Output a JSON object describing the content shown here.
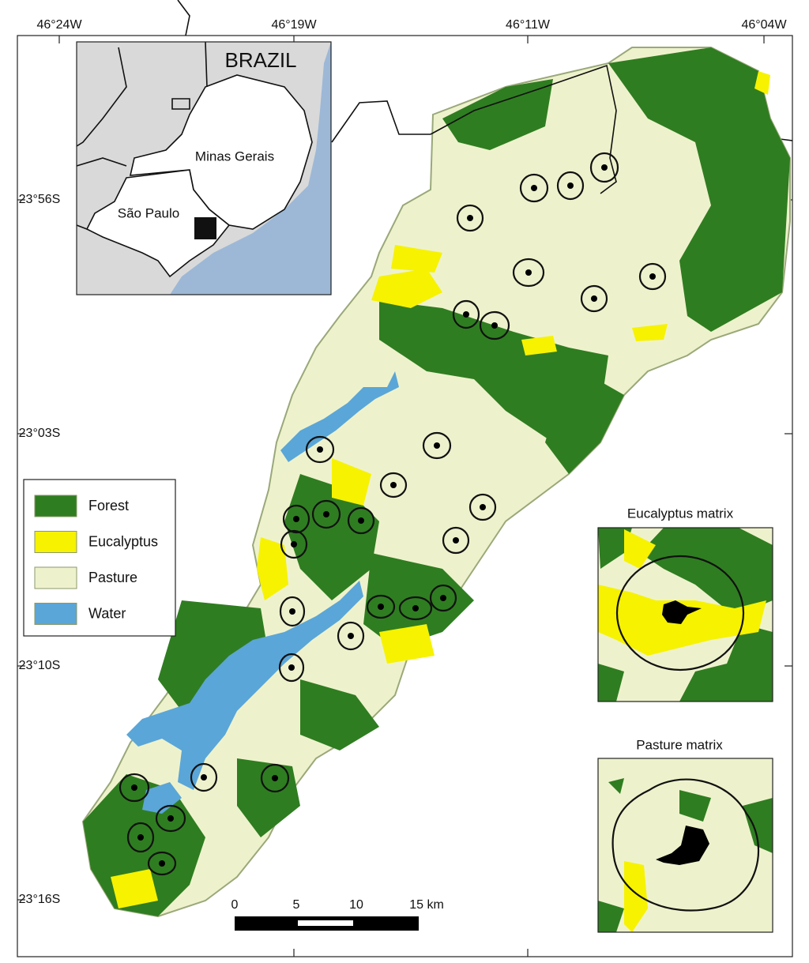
{
  "axes": {
    "top_labels": [
      "46°24W",
      "46°19W",
      "46°11W",
      "46°04W"
    ],
    "left_labels": [
      "23°56S",
      "23°03S",
      "23°10S",
      "23°16S"
    ]
  },
  "inset": {
    "country": "BRAZIL",
    "states": [
      "Minas Gerais",
      "São Paulo"
    ]
  },
  "legend": [
    {
      "label": "Forest",
      "color": "#2f7d21"
    },
    {
      "label": "Eucalyptus",
      "color": "#f6f200"
    },
    {
      "label": "Pasture",
      "color": "#eef2cc"
    },
    {
      "label": "Water",
      "color": "#5aa6d8"
    }
  ],
  "panels": [
    {
      "title": "Eucalyptus matrix"
    },
    {
      "title": "Pasture matrix"
    }
  ],
  "scale_bar": [
    "0",
    "5",
    "10",
    "15 km"
  ]
}
